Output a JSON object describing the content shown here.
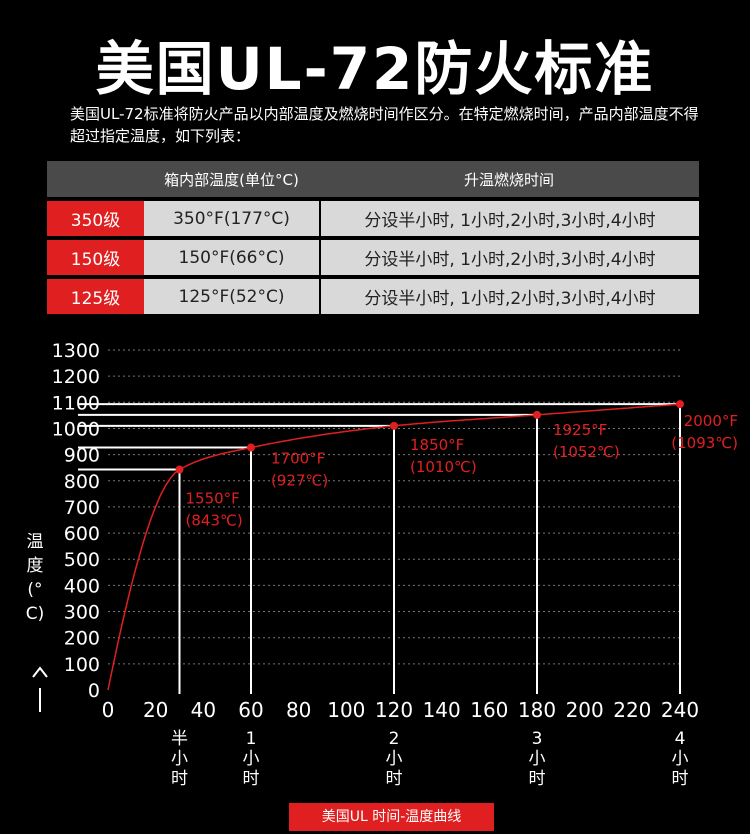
{
  "page": {
    "title": "美国UL-72防火标准",
    "description": "美国UL-72标准将防火产品以内部温度及燃烧时间作区分。在特定燃烧时间，产品内部温度不得超过指定温度，如下列表："
  },
  "table": {
    "headers": [
      "",
      "箱内部温度(单位°C)",
      "升温燃烧时间"
    ],
    "rows": [
      {
        "grade": "350级",
        "temp": "350°F(177°C)",
        "time": "分设半小时, 1小时,2小时,3小时,4小时"
      },
      {
        "grade": "150级",
        "temp": "150°F(66°C)",
        "time": "分设半小时, 1小时,2小时,3小时,4小时"
      },
      {
        "grade": "125级",
        "temp": "125°F(52°C)",
        "time": "分设半小时, 1小时,2小时,3小时,4小时"
      }
    ]
  },
  "colors": {
    "accent": "#e02020",
    "curve": "#e02020",
    "table_header": "#4a4a4a",
    "table_cell": "#d9d9d9"
  },
  "chart_data": {
    "type": "line",
    "title": "",
    "xlabel": "",
    "ylabel": "温度(°C)",
    "xlim": [
      0,
      240
    ],
    "ylim": [
      0,
      1300
    ],
    "xticks": [
      0,
      20,
      40,
      60,
      80,
      100,
      120,
      140,
      160,
      180,
      200,
      220,
      240
    ],
    "yticks": [
      0,
      100,
      200,
      300,
      400,
      500,
      600,
      700,
      800,
      900,
      1000,
      1100,
      1200,
      1300
    ],
    "grid": true,
    "points": [
      {
        "x": 30,
        "y": 843,
        "label_f": "1550°F",
        "label_c": "(843℃)",
        "time_label": "半小时"
      },
      {
        "x": 60,
        "y": 927,
        "label_f": "1700°F",
        "label_c": "(927℃)",
        "time_label": "1小时"
      },
      {
        "x": 120,
        "y": 1010,
        "label_f": "1850°F",
        "label_c": "(1010℃)",
        "time_label": "2小时"
      },
      {
        "x": 180,
        "y": 1052,
        "label_f": "1925°F",
        "label_c": "(1052℃)",
        "time_label": "3小时"
      },
      {
        "x": 240,
        "y": 1093,
        "label_f": "2000°F",
        "label_c": "(1093℃)",
        "time_label": "4小时"
      }
    ],
    "time_labels": [
      {
        "x": 30,
        "chars": [
          "半",
          "小",
          "时"
        ]
      },
      {
        "x": 60,
        "chars": [
          "1",
          "小",
          "时"
        ]
      },
      {
        "x": 120,
        "chars": [
          "2",
          "小",
          "时"
        ]
      },
      {
        "x": 180,
        "chars": [
          "3",
          "小",
          "时"
        ]
      },
      {
        "x": 240,
        "chars": [
          "4",
          "小",
          "时"
        ]
      }
    ]
  },
  "footer": {
    "caption": "美国UL 时间-温度曲线"
  }
}
